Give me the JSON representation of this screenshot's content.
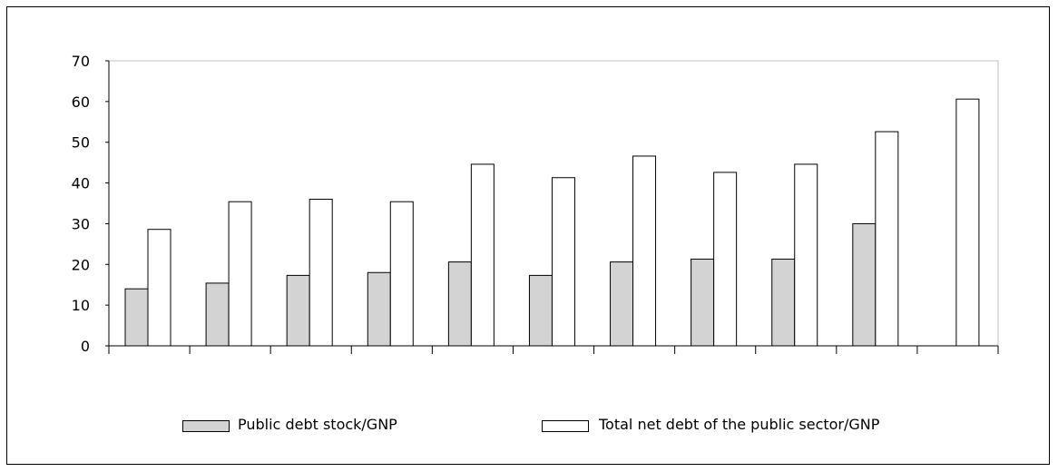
{
  "chart_data": {
    "type": "bar",
    "categories": [
      "",
      "",
      "",
      "",
      "",
      "",
      "",
      "",
      "",
      "",
      ""
    ],
    "series": [
      {
        "name": "Public debt stock/GNP",
        "values": [
          14,
          15.4,
          17.3,
          18,
          20.6,
          17.3,
          20.6,
          21.3,
          21.3,
          30,
          null
        ],
        "color": "#d3d3d3"
      },
      {
        "name": "Total net debt of the public sector/GNP",
        "values": [
          28.6,
          35.4,
          36,
          35.4,
          44.6,
          41.3,
          46.6,
          42.6,
          44.6,
          52.6,
          60.6
        ],
        "color": "#ffffff"
      }
    ],
    "yticks": [
      "0",
      "10",
      "20",
      "30",
      "40",
      "50",
      "60",
      "70"
    ],
    "ylim": [
      0,
      70
    ],
    "xlabel": "",
    "ylabel": "",
    "title": "",
    "grid": false,
    "legend_position": "bottom"
  }
}
